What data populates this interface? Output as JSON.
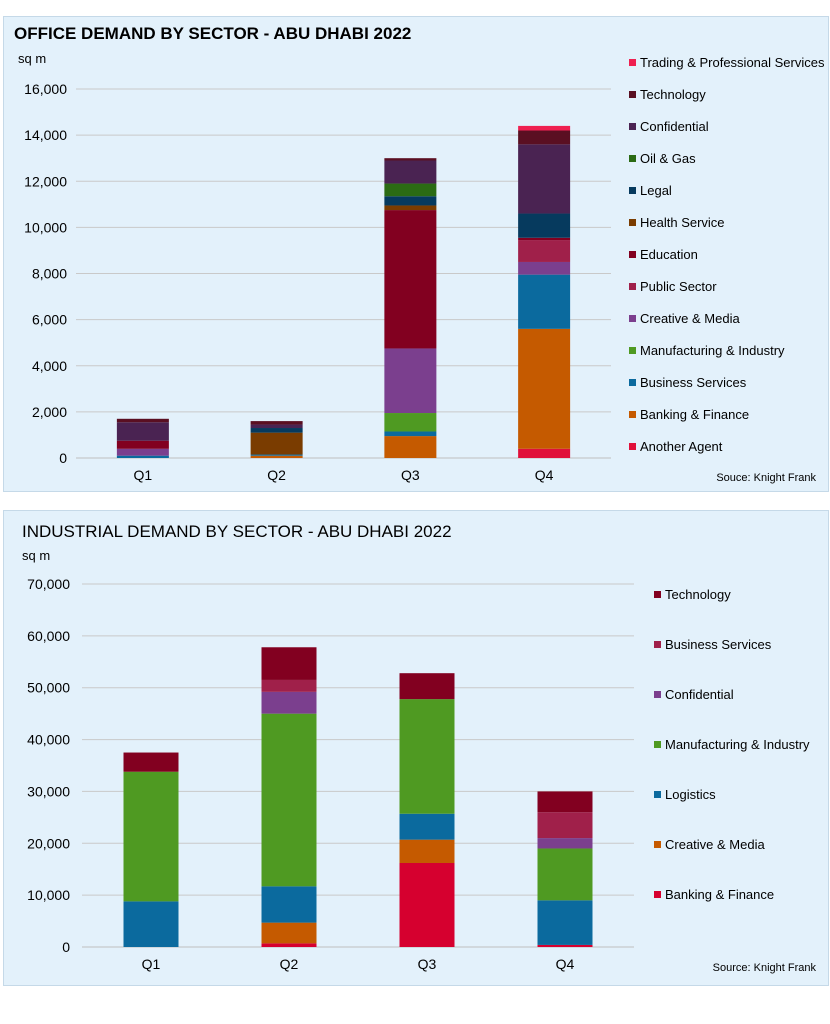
{
  "chart_data": [
    {
      "type": "bar",
      "stacked": true,
      "title": "OFFICE DEMAND BY SECTOR - ABU DHABI 2022",
      "ylabel": "sq m",
      "source": "Souce: Knight Frank",
      "categories": [
        "Q1",
        "Q2",
        "Q3",
        "Q4"
      ],
      "ylim": [
        0,
        16000
      ],
      "yticks": [
        "0",
        "2,000",
        "4,000",
        "6,000",
        "8,000",
        "10,000",
        "12,000",
        "14,000",
        "16,000"
      ],
      "grid": true,
      "legend_position": "right",
      "series": [
        {
          "name": "Another Agent",
          "color": "#e0103a",
          "values": [
            0,
            0,
            0,
            400
          ]
        },
        {
          "name": "Banking & Finance",
          "color": "#c55a00",
          "values": [
            0,
            100,
            950,
            5200
          ]
        },
        {
          "name": "Business Services",
          "color": "#0b6a9e",
          "values": [
            100,
            50,
            200,
            2350
          ]
        },
        {
          "name": "Manufacturing & Industry",
          "color": "#4f9a22",
          "values": [
            0,
            0,
            800,
            0
          ]
        },
        {
          "name": "Creative & Media",
          "color": "#7b3f8e",
          "values": [
            300,
            0,
            2800,
            550
          ]
        },
        {
          "name": "Public Sector",
          "color": "#a0204a",
          "values": [
            0,
            0,
            0,
            950
          ]
        },
        {
          "name": "Education",
          "color": "#820020",
          "values": [
            350,
            0,
            6000,
            100
          ]
        },
        {
          "name": "Health Service",
          "color": "#7a3c00",
          "values": [
            0,
            950,
            200,
            0
          ]
        },
        {
          "name": "Legal",
          "color": "#063a5e",
          "values": [
            0,
            200,
            400,
            1050
          ]
        },
        {
          "name": "Oil & Gas",
          "color": "#2b6b14",
          "values": [
            0,
            0,
            550,
            0
          ]
        },
        {
          "name": "Confidential",
          "color": "#4a2352",
          "values": [
            800,
            150,
            1000,
            3000
          ]
        },
        {
          "name": "Technology",
          "color": "#5a0f22",
          "values": [
            150,
            150,
            100,
            600
          ]
        },
        {
          "name": "Trading & Professional Services",
          "color": "#ef2050",
          "values": [
            0,
            0,
            0,
            200
          ]
        }
      ]
    },
    {
      "type": "bar",
      "stacked": true,
      "title": "INDUSTRIAL DEMAND BY SECTOR - ABU DHABI 2022",
      "ylabel": "sq m",
      "source": "Source: Knight Frank",
      "categories": [
        "Q1",
        "Q2",
        "Q3",
        "Q4"
      ],
      "ylim": [
        0,
        70000
      ],
      "yticks": [
        "0",
        "10,000",
        "20,000",
        "30,000",
        "40,000",
        "50,000",
        "60,000",
        "70,000"
      ],
      "grid": true,
      "legend_position": "right",
      "series": [
        {
          "name": "Banking & Finance",
          "color": "#d6002f",
          "values": [
            0,
            700,
            16200,
            400
          ]
        },
        {
          "name": "Creative & Media",
          "color": "#c55a00",
          "values": [
            0,
            4000,
            4500,
            0
          ]
        },
        {
          "name": "Logistics",
          "color": "#0b6a9e",
          "values": [
            8800,
            7000,
            5000,
            8600
          ]
        },
        {
          "name": "Manufacturing & Industry",
          "color": "#4f9a22",
          "values": [
            25000,
            33300,
            22100,
            10000
          ]
        },
        {
          "name": "Confidential",
          "color": "#7b3f8e",
          "values": [
            0,
            4200,
            0,
            2000
          ]
        },
        {
          "name": "Business Services",
          "color": "#a0204a",
          "values": [
            0,
            2300,
            0,
            5000
          ]
        },
        {
          "name": "Technology",
          "color": "#820020",
          "values": [
            3700,
            6300,
            5000,
            4000
          ]
        }
      ]
    }
  ]
}
